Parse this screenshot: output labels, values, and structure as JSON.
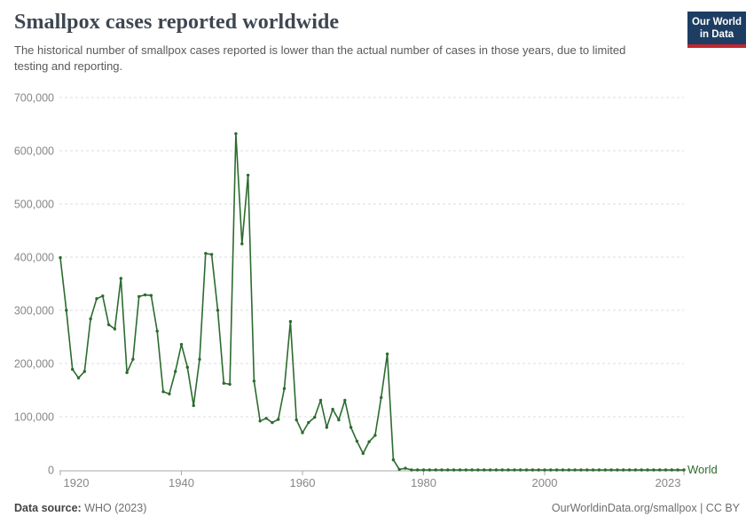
{
  "header": {
    "title": "Smallpox cases reported worldwide",
    "subtitle": "The historical number of smallpox cases reported is lower than the actual number of cases in those years, due to limited testing and reporting."
  },
  "logo": {
    "line1": "Our World",
    "line2": "in Data",
    "bg_color": "#1d3d63",
    "stripe_color": "#c4262e"
  },
  "chart_data": {
    "type": "line",
    "title": "Smallpox cases reported worldwide",
    "xlabel": "",
    "ylabel": "",
    "xlim": [
      1920,
      2023
    ],
    "ylim": [
      0,
      700000
    ],
    "x_ticks": [
      "1920",
      "1940",
      "1960",
      "1980",
      "2000",
      "2023"
    ],
    "y_ticks": [
      0,
      100000,
      200000,
      300000,
      400000,
      500000,
      600000,
      700000
    ],
    "grid": "horizontal dashed",
    "legend": "line-end label",
    "end_label": "World",
    "line_color": "#2c6b2e",
    "axis_color": "#a8a8a8",
    "grid_color": "#dedede",
    "tick_label_color": "#878787",
    "series": [
      {
        "name": "World",
        "x": [
          1920,
          1921,
          1922,
          1923,
          1924,
          1925,
          1926,
          1927,
          1928,
          1929,
          1930,
          1931,
          1932,
          1933,
          1934,
          1935,
          1936,
          1937,
          1938,
          1939,
          1940,
          1941,
          1942,
          1943,
          1944,
          1945,
          1946,
          1947,
          1948,
          1949,
          1950,
          1951,
          1952,
          1953,
          1954,
          1955,
          1956,
          1957,
          1958,
          1959,
          1960,
          1961,
          1962,
          1963,
          1964,
          1965,
          1966,
          1967,
          1968,
          1969,
          1970,
          1971,
          1972,
          1973,
          1974,
          1975,
          1976,
          1977,
          1978,
          1979,
          1980,
          1981,
          1982,
          1983,
          1984,
          1985,
          1986,
          1987,
          1988,
          1989,
          1990,
          1991,
          1992,
          1993,
          1994,
          1995,
          1996,
          1997,
          1998,
          1999,
          2000,
          2001,
          2002,
          2003,
          2004,
          2005,
          2006,
          2007,
          2008,
          2009,
          2010,
          2011,
          2012,
          2013,
          2014,
          2015,
          2016,
          2017,
          2018,
          2019,
          2020,
          2021,
          2022,
          2023
        ],
        "values": [
          399000,
          300000,
          189000,
          173000,
          185000,
          284000,
          322000,
          327000,
          273000,
          265000,
          360000,
          183000,
          208000,
          326000,
          329000,
          328000,
          261000,
          147000,
          143000,
          185000,
          236000,
          193000,
          121000,
          208000,
          407000,
          405000,
          300000,
          163000,
          161000,
          632000,
          425000,
          554000,
          167000,
          92000,
          97000,
          89000,
          95000,
          153000,
          279000,
          94000,
          70000,
          89000,
          99000,
          131000,
          80000,
          114000,
          94000,
          131000,
          80000,
          54000,
          31000,
          53000,
          65000,
          136000,
          218000,
          19000,
          1000,
          3200,
          0,
          0,
          0,
          0,
          0,
          0,
          0,
          0,
          0,
          0,
          0,
          0,
          0,
          0,
          0,
          0,
          0,
          0,
          0,
          0,
          0,
          0,
          0,
          0,
          0,
          0,
          0,
          0,
          0,
          0,
          0,
          0,
          0,
          0,
          0,
          0,
          0,
          0,
          0,
          0,
          0,
          0,
          0,
          0,
          0,
          0
        ]
      }
    ]
  },
  "footer": {
    "source_label": "Data source:",
    "source_value": "WHO (2023)",
    "rights": "OurWorldinData.org/smallpox | CC BY"
  }
}
